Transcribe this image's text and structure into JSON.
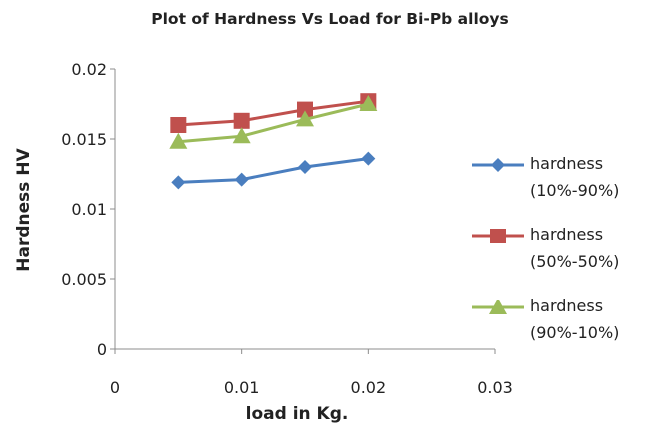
{
  "chart_data": {
    "type": "line",
    "title": "Plot of Hardness Vs Load for Bi-Pb alloys",
    "xlabel": "load in Kg.",
    "ylabel": "Hardness  HV",
    "xlim": [
      0,
      0.03
    ],
    "ylim": [
      0,
      0.02
    ],
    "xticks": [
      "0",
      "0.01",
      "0.02",
      "0.03"
    ],
    "yticks": [
      "0",
      "0.005",
      "0.01",
      "0.015",
      "0.02"
    ],
    "grid": false,
    "legend_position": "right",
    "x": [
      0.005,
      0.01,
      0.015,
      0.02
    ],
    "series": [
      {
        "name_line1": "hardness",
        "name_line2": "(10%-90%)",
        "values": [
          0.0119,
          0.0121,
          0.013,
          0.0136
        ],
        "color": "#4a7ebf",
        "marker": "diamond"
      },
      {
        "name_line1": "hardness",
        "name_line2": "(50%-50%)",
        "values": [
          0.016,
          0.0163,
          0.0171,
          0.0177
        ],
        "color": "#c0504d",
        "marker": "square"
      },
      {
        "name_line1": "hardness",
        "name_line2": "(90%-10%)",
        "values": [
          0.0148,
          0.0152,
          0.0164,
          0.0175
        ],
        "color": "#9bbb59",
        "marker": "triangle"
      }
    ]
  }
}
